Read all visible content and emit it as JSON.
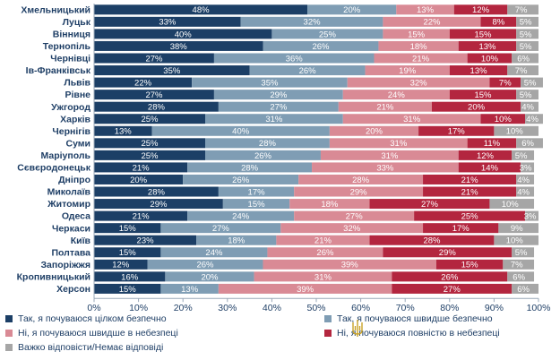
{
  "chart_data": {
    "type": "bar",
    "orientation": "horizontal",
    "stacked": true,
    "categories": [
      "Хмельницький",
      "Луцьк",
      "Вінниця",
      "Тернопіль",
      "Чернівці",
      "Ів-Франківськ",
      "Львів",
      "Рівне",
      "Ужгород",
      "Харків",
      "Чернігів",
      "Суми",
      "Маріуполь",
      "Сєвєродонецьк",
      "Дніпро",
      "Миколаїв",
      "Житомир",
      "Одеса",
      "Черкаси",
      "Київ",
      "Полтава",
      "Запоріжжя",
      "Кропивницький",
      "Херсон"
    ],
    "series": [
      {
        "name": "Так, я почуваюся цілком безпечно",
        "color": "#1c3f66",
        "values": [
          48,
          33,
          40,
          38,
          27,
          35,
          22,
          27,
          28,
          25,
          13,
          25,
          25,
          21,
          20,
          28,
          29,
          21,
          15,
          23,
          15,
          12,
          16,
          15
        ]
      },
      {
        "name": "Так, я почуваюся швидше безпечно",
        "color": "#7f9db4",
        "values": [
          20,
          32,
          25,
          26,
          36,
          26,
          35,
          29,
          27,
          31,
          40,
          28,
          26,
          28,
          26,
          17,
          15,
          24,
          27,
          18,
          24,
          26,
          20,
          13
        ]
      },
      {
        "name": "Ні, я почуваюся швидше в небезпеці",
        "color": "#d98a95",
        "values": [
          13,
          22,
          15,
          18,
          21,
          19,
          32,
          24,
          21,
          31,
          20,
          31,
          31,
          33,
          28,
          29,
          18,
          27,
          32,
          21,
          26,
          39,
          31,
          39
        ]
      },
      {
        "name": "Ні, я почуваюся повністю в небезпеці",
        "color": "#b3263f",
        "values": [
          12,
          8,
          15,
          13,
          10,
          13,
          7,
          15,
          20,
          10,
          17,
          11,
          12,
          14,
          21,
          21,
          27,
          25,
          17,
          28,
          29,
          15,
          26,
          27
        ]
      },
      {
        "name": "Важко відповісти/Немає відповіді",
        "color": "#a6a6a6",
        "values": [
          7,
          5,
          5,
          5,
          6,
          7,
          5,
          5,
          4,
          4,
          10,
          6,
          5,
          3,
          4,
          4,
          10,
          3,
          9,
          10,
          5,
          7,
          6,
          6
        ]
      }
    ],
    "xlim": [
      0,
      100
    ],
    "xticks": [
      "0%",
      "10%",
      "20%",
      "30%",
      "40%",
      "50%",
      "60%",
      "70%",
      "80%",
      "90%",
      "100%"
    ],
    "grid": false,
    "legend_position": "bottom"
  }
}
